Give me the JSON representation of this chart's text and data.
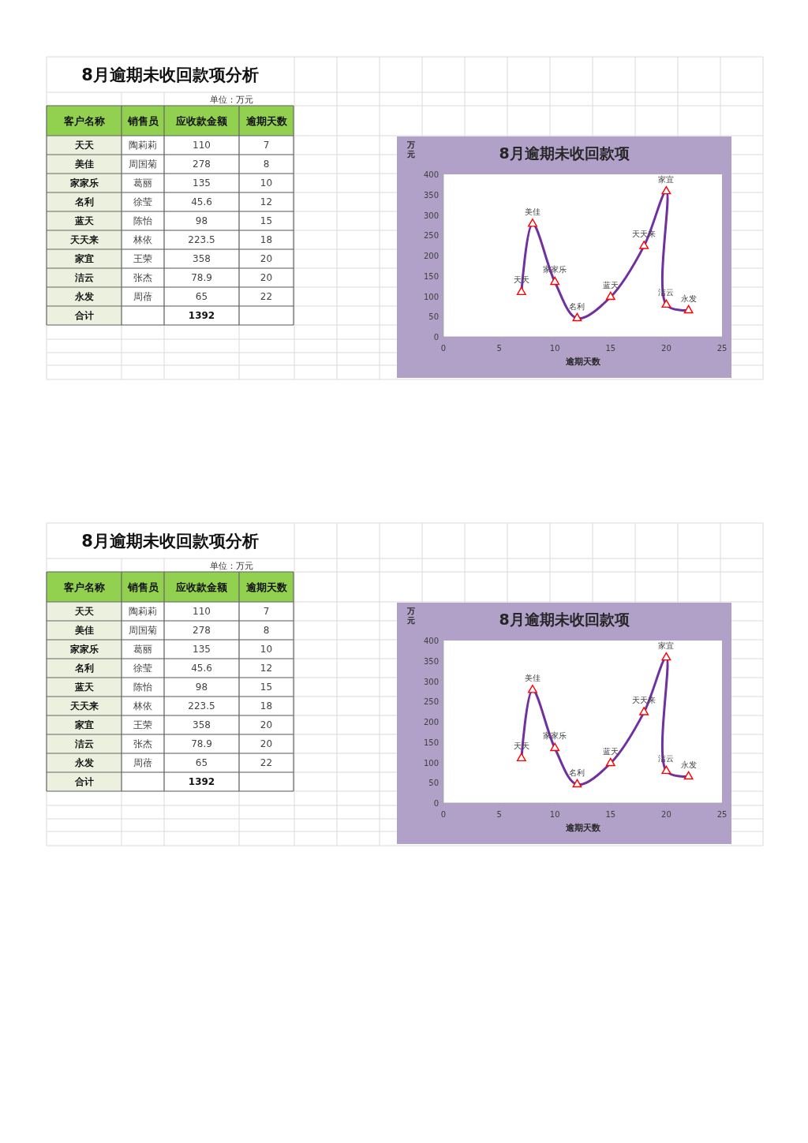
{
  "chart_data": [
    {
      "type": "other",
      "title": "8月逾期未收回款项分析",
      "subtitle": "单位：万元",
      "xlabel": "客户名称",
      "categories": [
        "天天",
        "美佳",
        "家家乐",
        "名利",
        "蓝天",
        "天天来",
        "家宜",
        "洁云",
        "永发",
        "合计"
      ],
      "series": [
        {
          "name": "销售员",
          "values": [
            null,
            null,
            null,
            null,
            null,
            null,
            null,
            null,
            null,
            null
          ],
          "value_labels": [
            "陶莉莉",
            "周国菊",
            "葛丽",
            "徐莹",
            "陈怡",
            "林依",
            "王荣",
            "张杰",
            "周蓓",
            null
          ]
        },
        {
          "name": "应收款金额",
          "values": [
            110,
            278,
            135,
            45.6,
            98,
            223.5,
            358,
            78.9,
            65,
            1392
          ]
        },
        {
          "name": "逾期天数",
          "values": [
            7,
            8,
            10,
            12,
            15,
            18,
            20,
            20,
            22,
            null
          ]
        }
      ],
      "data_labels": true
    },
    {
      "type": "line",
      "title": "8月逾期未收回款项",
      "xlabel": "逾期天数",
      "ylabel": "万元",
      "x": [
        7,
        8,
        10,
        12,
        15,
        18,
        20,
        20,
        22
      ],
      "series": [
        {
          "color": "#7030a0",
          "values": [
            110,
            278,
            135,
            45.6,
            98,
            223.5,
            358,
            78.9,
            65
          ]
        }
      ],
      "marker": "triangle",
      "line_style": "solid",
      "xlim": [
        0,
        25
      ],
      "xticks": [
        0,
        5,
        10,
        15,
        20,
        25
      ],
      "ylim": [
        0,
        400
      ],
      "yticks": [
        0,
        50,
        100,
        150,
        200,
        250,
        300,
        350,
        400
      ],
      "annotations": [
        {
          "text": "天天",
          "x": 7,
          "y": 110
        },
        {
          "text": "美佳",
          "x": 8,
          "y": 278
        },
        {
          "text": "家家乐",
          "x": 10,
          "y": 135
        },
        {
          "text": "名利",
          "x": 12,
          "y": 45.6
        },
        {
          "text": "蓝天",
          "x": 15,
          "y": 98
        },
        {
          "text": "天天来",
          "x": 18,
          "y": 223.5
        },
        {
          "text": "家宜",
          "x": 20,
          "y": 358
        },
        {
          "text": "洁云",
          "x": 20,
          "y": 78.9
        },
        {
          "text": "永发",
          "x": 22,
          "y": 65
        }
      ]
    },
    {
      "type": "other",
      "title": "8月逾期未收回款项分析",
      "subtitle": "单位：万元",
      "xlabel": "客户名称",
      "categories": [
        "天天",
        "美佳",
        "家家乐",
        "名利",
        "蓝天",
        "天天来",
        "家宜",
        "洁云",
        "永发",
        "合计"
      ],
      "series": [
        {
          "name": "销售员",
          "values": [
            null,
            null,
            null,
            null,
            null,
            null,
            null,
            null,
            null,
            null
          ],
          "value_labels": [
            "陶莉莉",
            "周国菊",
            "葛丽",
            "徐莹",
            "陈怡",
            "林依",
            "王荣",
            "张杰",
            "周蓓",
            null
          ]
        },
        {
          "name": "应收款金额",
          "values": [
            110,
            278,
            135,
            45.6,
            98,
            223.5,
            358,
            78.9,
            65,
            1392
          ]
        },
        {
          "name": "逾期天数",
          "values": [
            7,
            8,
            10,
            12,
            15,
            18,
            20,
            20,
            22,
            null
          ]
        }
      ],
      "data_labels": true
    },
    {
      "type": "line",
      "title": "8月逾期未收回款项",
      "xlabel": "逾期天数",
      "ylabel": "万元",
      "x": [
        7,
        8,
        10,
        12,
        15,
        18,
        20,
        20,
        22
      ],
      "series": [
        {
          "color": "#7030a0",
          "values": [
            110,
            278,
            135,
            45.6,
            98,
            223.5,
            358,
            78.9,
            65
          ]
        }
      ],
      "marker": "triangle",
      "line_style": "solid",
      "xlim": [
        0,
        25
      ],
      "xticks": [
        0,
        5,
        10,
        15,
        20,
        25
      ],
      "ylim": [
        0,
        400
      ],
      "yticks": [
        0,
        50,
        100,
        150,
        200,
        250,
        300,
        350,
        400
      ],
      "annotations": [
        {
          "text": "天天",
          "x": 7,
          "y": 110
        },
        {
          "text": "美佳",
          "x": 8,
          "y": 278
        },
        {
          "text": "家家乐",
          "x": 10,
          "y": 135
        },
        {
          "text": "名利",
          "x": 12,
          "y": 45.6
        },
        {
          "text": "蓝天",
          "x": 15,
          "y": 98
        },
        {
          "text": "天天来",
          "x": 18,
          "y": 223.5
        },
        {
          "text": "家宜",
          "x": 20,
          "y": 358
        },
        {
          "text": "洁云",
          "x": 20,
          "y": 78.9
        },
        {
          "text": "永发",
          "x": 22,
          "y": 65
        }
      ]
    }
  ]
}
